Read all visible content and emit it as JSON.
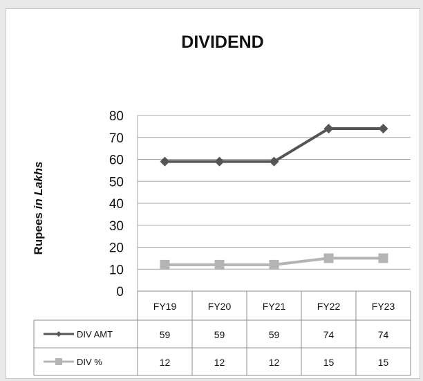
{
  "chart_data": {
    "type": "line",
    "title": "DIVIDEND",
    "ylabel_main": "Rupees ",
    "ylabel_italic": "in Lakhs",
    "xlabel": "",
    "categories": [
      "FY19",
      "FY20",
      "FY21",
      "FY22",
      "FY23"
    ],
    "yticks": [
      0,
      10,
      20,
      30,
      40,
      50,
      60,
      70,
      80
    ],
    "ylim": [
      0,
      80
    ],
    "grid": true,
    "legend_placement": "data-table",
    "series": [
      {
        "name": "DIV AMT",
        "values": [
          59,
          59,
          59,
          74,
          74
        ],
        "color": "#555555",
        "marker": "diamond"
      },
      {
        "name": "DIV %",
        "values": [
          12,
          12,
          12,
          15,
          15
        ],
        "color": "#b4b4b4",
        "marker": "square"
      }
    ]
  }
}
